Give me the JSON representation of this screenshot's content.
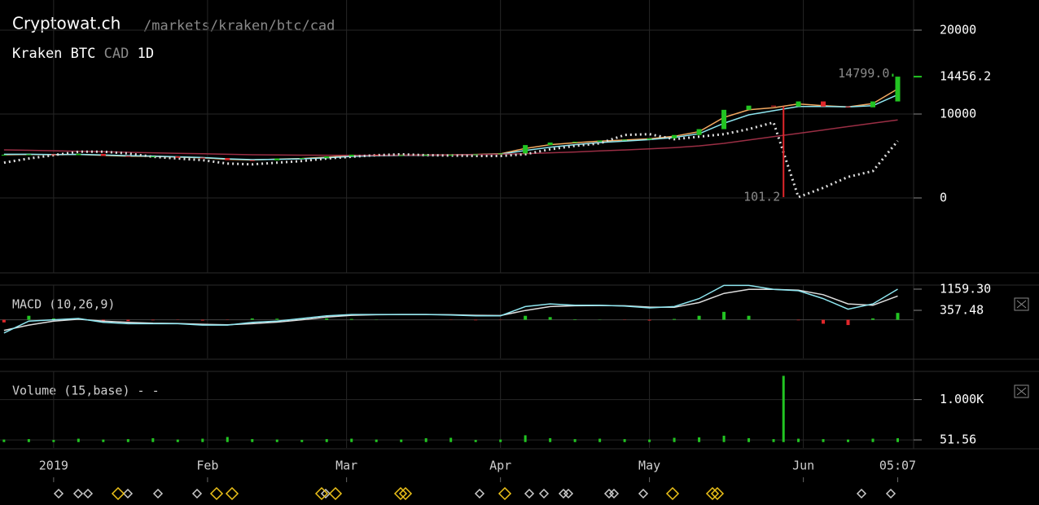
{
  "header": {
    "site": "Cryptowat.ch",
    "path": "/markets/kraken/btc/cad",
    "exchange": "Kraken",
    "base": "BTC",
    "quote": "CAD",
    "interval": "1D"
  },
  "chart_data": [
    {
      "type": "candlestick",
      "x": [
        -10,
        -5,
        0,
        5,
        10,
        15,
        20,
        25,
        30,
        35,
        40,
        45,
        50,
        55,
        60,
        65,
        70,
        75,
        80,
        85,
        90,
        95,
        100,
        105,
        110,
        115,
        120,
        125,
        130,
        135,
        140,
        145,
        150,
        155,
        160,
        165,
        170
      ],
      "open": [
        5100,
        5150,
        5200,
        5100,
        5250,
        5000,
        4900,
        4950,
        4800,
        4750,
        4500,
        4480,
        4700,
        4750,
        4950,
        5150,
        5100,
        5100,
        5150,
        5150,
        5200,
        5300,
        6300,
        6600,
        6700,
        6850,
        6950,
        7100,
        7500,
        8200,
        10500,
        11000,
        10900,
        11500,
        10900,
        10800,
        11500
      ],
      "close": [
        5150,
        5200,
        5100,
        5250,
        5000,
        4900,
        4950,
        4800,
        4750,
        4500,
        4480,
        4700,
        4750,
        4950,
        5150,
        5100,
        5100,
        5150,
        5150,
        5200,
        5300,
        6300,
        6600,
        6700,
        6850,
        6950,
        7100,
        7500,
        8200,
        10500,
        11000,
        10900,
        11500,
        10900,
        10800,
        11500,
        14456.2
      ],
      "up_color": "#22c422",
      "down_color": "#e0262a",
      "lines": [
        {
          "color": "#f2a860",
          "values": [
            5150,
            5180,
            5150,
            5180,
            5080,
            4980,
            4960,
            4860,
            4790,
            4600,
            4520,
            4620,
            4700,
            4850,
            5050,
            5080,
            5090,
            5120,
            5140,
            5180,
            5260,
            5900,
            6350,
            6580,
            6780,
            6900,
            7050,
            7350,
            7900,
            9600,
            10500,
            10750,
            11200,
            11000,
            10850,
            11250,
            13000
          ]
        },
        {
          "color": "#8ee6f0",
          "values": [
            5200,
            5200,
            5170,
            5190,
            5120,
            5040,
            4990,
            4900,
            4820,
            4660,
            4560,
            4600,
            4660,
            4780,
            4950,
            5020,
            5060,
            5090,
            5120,
            5160,
            5220,
            5650,
            6050,
            6350,
            6600,
            6780,
            6950,
            7200,
            7650,
            8900,
            9900,
            10400,
            10900,
            10900,
            10850,
            11000,
            12300
          ]
        },
        {
          "color": "#9a2e44",
          "values": [
            5730,
            5680,
            5620,
            5560,
            5500,
            5440,
            5380,
            5320,
            5260,
            5200,
            5150,
            5120,
            5100,
            5090,
            5090,
            5090,
            5100,
            5110,
            5130,
            5160,
            5200,
            5280,
            5380,
            5480,
            5600,
            5720,
            5850,
            6000,
            6200,
            6500,
            6900,
            7300,
            7700,
            8100,
            8500,
            8900,
            9300
          ]
        },
        {
          "color": "#dddddd",
          "style": "dotted",
          "values": [
            4200,
            4700,
            5100,
            5500,
            5500,
            5300,
            4900,
            4700,
            4500,
            4100,
            4000,
            4200,
            4400,
            4700,
            4900,
            5100,
            5200,
            5100,
            5050,
            5000,
            5000,
            5200,
            5800,
            6200,
            6500,
            7500,
            7600,
            7000,
            7300,
            7600,
            8200,
            9000,
            100,
            1200,
            2500,
            3200,
            6800
          ]
        }
      ],
      "xlim": [
        -10.8,
        173.2
      ],
      "ylim": [
        -8932,
        23592
      ],
      "yticks": [
        0,
        10000,
        20000
      ],
      "xticks": [
        {
          "value": 0,
          "label": "2019"
        },
        {
          "value": 31,
          "label": "Feb"
        },
        {
          "value": 59,
          "label": "Mar"
        },
        {
          "value": 90,
          "label": "Apr"
        },
        {
          "value": 120,
          "label": "May"
        },
        {
          "value": 151,
          "label": "Jun"
        },
        {
          "value": 170,
          "label": "05:07"
        }
      ],
      "grid": true,
      "last_price": 14456.2,
      "annotations": [
        {
          "x": 169,
          "value": 14799.0,
          "label": "14799.0"
        },
        {
          "x": 147,
          "value": 101.2,
          "label": "101.2"
        }
      ]
    },
    {
      "type": "macd",
      "title": "MACD (10,26,9)",
      "x": [
        -10,
        -5,
        0,
        5,
        10,
        15,
        20,
        25,
        30,
        35,
        40,
        45,
        50,
        55,
        60,
        65,
        70,
        75,
        80,
        85,
        90,
        95,
        100,
        105,
        110,
        115,
        120,
        125,
        130,
        135,
        140,
        145,
        150,
        155,
        160,
        165,
        170
      ],
      "macd": [
        -500,
        -50,
        0,
        50,
        -100,
        -150,
        -150,
        -150,
        -200,
        -200,
        -100,
        -50,
        50,
        150,
        200,
        200,
        200,
        200,
        180,
        150,
        150,
        500,
        600,
        550,
        550,
        520,
        450,
        500,
        800,
        1300,
        1300,
        1150,
        1100,
        800,
        400,
        600,
        1159.3
      ],
      "signal": [
        -400,
        -200,
        -50,
        20,
        -50,
        -100,
        -130,
        -140,
        -170,
        -190,
        -150,
        -90,
        0,
        100,
        170,
        190,
        200,
        200,
        190,
        170,
        160,
        350,
        500,
        530,
        540,
        530,
        480,
        470,
        650,
        1000,
        1150,
        1150,
        1120,
        950,
        600,
        550,
        900
      ],
      "histogram": [
        -100,
        150,
        50,
        30,
        -50,
        -50,
        -20,
        -10,
        -30,
        -10,
        50,
        40,
        50,
        50,
        30,
        10,
        0,
        0,
        -10,
        -20,
        -10,
        150,
        100,
        20,
        10,
        -10,
        -30,
        30,
        150,
        300,
        150,
        0,
        -20,
        -150,
        -200,
        50,
        259.3
      ],
      "macd_color": "#8ee6f0",
      "signal_color": "#dddddd",
      "up_color": "#22c422",
      "down_color": "#e0262a",
      "xlim": [
        -10.8,
        173.2
      ],
      "ylim": [
        -1462,
        1313
      ],
      "yticks": [
        {
          "value": 1159.3,
          "label": "1159.30"
        },
        {
          "value": 357.48,
          "label": "357.48"
        }
      ]
    },
    {
      "type": "bar",
      "title": "Volume (15,base) - -",
      "x": [
        -10,
        -5,
        0,
        5,
        10,
        15,
        20,
        25,
        30,
        35,
        40,
        45,
        50,
        55,
        60,
        65,
        70,
        75,
        80,
        85,
        90,
        95,
        100,
        105,
        110,
        115,
        120,
        125,
        130,
        135,
        140,
        145,
        147,
        150,
        155,
        160,
        165,
        170
      ],
      "values": [
        60,
        70,
        50,
        80,
        60,
        70,
        90,
        60,
        80,
        120,
        70,
        60,
        50,
        70,
        80,
        60,
        60,
        90,
        100,
        50,
        60,
        160,
        90,
        70,
        80,
        70,
        60,
        100,
        110,
        150,
        90,
        70,
        1560,
        80,
        70,
        60,
        80,
        90
      ],
      "color": "#22c422",
      "xlim": [
        -10.8,
        173.2
      ],
      "ylim": [
        -139,
        1664
      ],
      "yticks": [
        {
          "value": 1000,
          "label": "1.000K"
        },
        51.56
      ],
      "grid": true
    }
  ]
}
